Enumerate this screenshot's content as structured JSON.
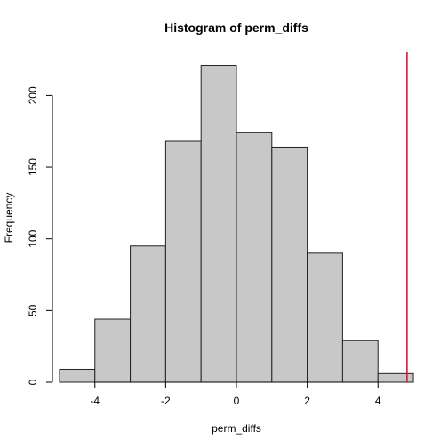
{
  "chart_data": {
    "type": "bar",
    "title": "Histogram of perm_diffs",
    "xlabel": "perm_diffs",
    "ylabel": "Frequency",
    "bins": [
      {
        "from": -5,
        "to": -4,
        "count": 9
      },
      {
        "from": -4,
        "to": -3,
        "count": 44
      },
      {
        "from": -3,
        "to": -2,
        "count": 95
      },
      {
        "from": -2,
        "to": -1,
        "count": 168
      },
      {
        "from": -1,
        "to": 0,
        "count": 221
      },
      {
        "from": 0,
        "to": 1,
        "count": 174
      },
      {
        "from": 1,
        "to": 2,
        "count": 164
      },
      {
        "from": 2,
        "to": 3,
        "count": 90
      },
      {
        "from": 3,
        "to": 4,
        "count": 29
      },
      {
        "from": 4,
        "to": 5,
        "count": 6
      }
    ],
    "x_ticks": [
      -4,
      -2,
      0,
      2,
      4
    ],
    "x_tick_labels": [
      "-4",
      "-2",
      "0",
      "2",
      "4"
    ],
    "y_ticks": [
      0,
      50,
      100,
      150,
      200
    ],
    "y_tick_labels": [
      "0",
      "50",
      "100",
      "150",
      "200"
    ],
    "xlim": [
      -5.2,
      5.2
    ],
    "ylim": [
      0,
      230
    ],
    "reference_line": {
      "x": 4.82,
      "color": "#dc143c"
    },
    "bar_color": "#c8c8c8",
    "grid": false
  }
}
